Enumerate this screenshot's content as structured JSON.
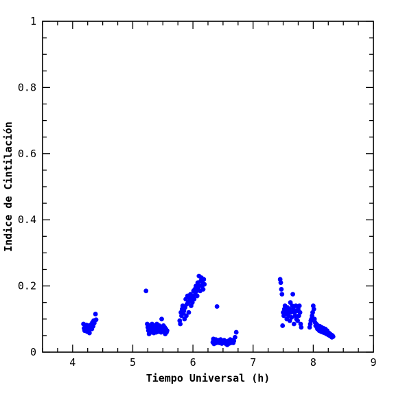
{
  "chart_data": {
    "type": "scatter",
    "xlabel": "Tiempo Universal (h)",
    "ylabel": "Indice de Cintilación",
    "xlim": [
      3.5,
      9
    ],
    "ylim": [
      0,
      1
    ],
    "x_ticks": [
      "4",
      "5",
      "6",
      "7",
      "8",
      "9"
    ],
    "y_ticks": [
      "0",
      "0.2",
      "0.4",
      "0.6",
      "0.8",
      "1"
    ],
    "marker_color": "#0000ff",
    "series": [
      {
        "points": [
          [
            4.18,
            0.085
          ],
          [
            4.19,
            0.072
          ],
          [
            4.2,
            0.065
          ],
          [
            4.21,
            0.078
          ],
          [
            4.22,
            0.068
          ],
          [
            4.23,
            0.082
          ],
          [
            4.24,
            0.062
          ],
          [
            4.25,
            0.074
          ],
          [
            4.26,
            0.08
          ],
          [
            4.27,
            0.066
          ],
          [
            4.28,
            0.058
          ],
          [
            4.29,
            0.072
          ],
          [
            4.3,
            0.076
          ],
          [
            4.31,
            0.084
          ],
          [
            4.32,
            0.07
          ],
          [
            4.33,
            0.09
          ],
          [
            4.34,
            0.078
          ],
          [
            4.35,
            0.095
          ],
          [
            4.36,
            0.088
          ],
          [
            4.37,
            0.096
          ],
          [
            4.38,
            0.115
          ],
          [
            4.39,
            0.098
          ],
          [
            5.22,
            0.185
          ],
          [
            5.24,
            0.085
          ],
          [
            5.25,
            0.075
          ],
          [
            5.26,
            0.065
          ],
          [
            5.27,
            0.055
          ],
          [
            5.28,
            0.08
          ],
          [
            5.29,
            0.07
          ],
          [
            5.3,
            0.06
          ],
          [
            5.31,
            0.078
          ],
          [
            5.32,
            0.085
          ],
          [
            5.33,
            0.066
          ],
          [
            5.34,
            0.072
          ],
          [
            5.35,
            0.058
          ],
          [
            5.36,
            0.08
          ],
          [
            5.37,
            0.075
          ],
          [
            5.38,
            0.065
          ],
          [
            5.39,
            0.06
          ],
          [
            5.4,
            0.085
          ],
          [
            5.41,
            0.07
          ],
          [
            5.42,
            0.078
          ],
          [
            5.43,
            0.062
          ],
          [
            5.44,
            0.08
          ],
          [
            5.45,
            0.068
          ],
          [
            5.46,
            0.074
          ],
          [
            5.47,
            0.06
          ],
          [
            5.48,
            0.1
          ],
          [
            5.49,
            0.072
          ],
          [
            5.5,
            0.066
          ],
          [
            5.51,
            0.08
          ],
          [
            5.52,
            0.062
          ],
          [
            5.53,
            0.075
          ],
          [
            5.54,
            0.055
          ],
          [
            5.55,
            0.07
          ],
          [
            5.56,
            0.06
          ],
          [
            5.57,
            0.065
          ],
          [
            5.78,
            0.095
          ],
          [
            5.79,
            0.085
          ],
          [
            5.8,
            0.12
          ],
          [
            5.81,
            0.11
          ],
          [
            5.82,
            0.13
          ],
          [
            5.83,
            0.14
          ],
          [
            5.84,
            0.118
          ],
          [
            5.85,
            0.125
          ],
          [
            5.86,
            0.1
          ],
          [
            5.87,
            0.135
          ],
          [
            5.88,
            0.16
          ],
          [
            5.89,
            0.11
          ],
          [
            5.9,
            0.145
          ],
          [
            5.91,
            0.17
          ],
          [
            5.92,
            0.15
          ],
          [
            5.93,
            0.12
          ],
          [
            5.94,
            0.165
          ],
          [
            5.95,
            0.155
          ],
          [
            5.96,
            0.175
          ],
          [
            5.97,
            0.14
          ],
          [
            5.98,
            0.16
          ],
          [
            5.99,
            0.15
          ],
          [
            6.0,
            0.17
          ],
          [
            6.01,
            0.185
          ],
          [
            6.02,
            0.16
          ],
          [
            6.03,
            0.19
          ],
          [
            6.04,
            0.175
          ],
          [
            6.05,
            0.2
          ],
          [
            6.06,
            0.185
          ],
          [
            6.07,
            0.17
          ],
          [
            6.08,
            0.21
          ],
          [
            6.09,
            0.19
          ],
          [
            6.1,
            0.23
          ],
          [
            6.11,
            0.2
          ],
          [
            6.12,
            0.185
          ],
          [
            6.13,
            0.215
          ],
          [
            6.14,
            0.225
          ],
          [
            6.15,
            0.2
          ],
          [
            6.16,
            0.21
          ],
          [
            6.17,
            0.19
          ],
          [
            6.18,
            0.22
          ],
          [
            6.19,
            0.205
          ],
          [
            6.33,
            0.03
          ],
          [
            6.34,
            0.04
          ],
          [
            6.35,
            0.025
          ],
          [
            6.36,
            0.035
          ],
          [
            6.37,
            0.032
          ],
          [
            6.38,
            0.038
          ],
          [
            6.39,
            0.028
          ],
          [
            6.4,
            0.138
          ],
          [
            6.41,
            0.034
          ],
          [
            6.42,
            0.03
          ],
          [
            6.43,
            0.036
          ],
          [
            6.44,
            0.028
          ],
          [
            6.45,
            0.032
          ],
          [
            6.46,
            0.038
          ],
          [
            6.47,
            0.03
          ],
          [
            6.48,
            0.026
          ],
          [
            6.49,
            0.034
          ],
          [
            6.5,
            0.029
          ],
          [
            6.51,
            0.031
          ],
          [
            6.52,
            0.036
          ],
          [
            6.53,
            0.028
          ],
          [
            6.54,
            0.033
          ],
          [
            6.55,
            0.025
          ],
          [
            6.56,
            0.03
          ],
          [
            6.57,
            0.022
          ],
          [
            6.58,
            0.028
          ],
          [
            6.59,
            0.034
          ],
          [
            6.6,
            0.026
          ],
          [
            6.61,
            0.03
          ],
          [
            6.62,
            0.038
          ],
          [
            6.63,
            0.028
          ],
          [
            6.64,
            0.032
          ],
          [
            6.65,
            0.036
          ],
          [
            6.66,
            0.03
          ],
          [
            6.67,
            0.028
          ],
          [
            6.68,
            0.034
          ],
          [
            6.7,
            0.045
          ],
          [
            6.72,
            0.06
          ],
          [
            7.45,
            0.22
          ],
          [
            7.46,
            0.21
          ],
          [
            7.47,
            0.19
          ],
          [
            7.48,
            0.175
          ],
          [
            7.49,
            0.08
          ],
          [
            7.5,
            0.12
          ],
          [
            7.51,
            0.11
          ],
          [
            7.52,
            0.13
          ],
          [
            7.53,
            0.14
          ],
          [
            7.54,
            0.115
          ],
          [
            7.55,
            0.125
          ],
          [
            7.56,
            0.1
          ],
          [
            7.57,
            0.135
          ],
          [
            7.58,
            0.12
          ],
          [
            7.59,
            0.11
          ],
          [
            7.6,
            0.13
          ],
          [
            7.61,
            0.095
          ],
          [
            7.62,
            0.15
          ],
          [
            7.63,
            0.12
          ],
          [
            7.64,
            0.105
          ],
          [
            7.65,
            0.14
          ],
          [
            7.66,
            0.175
          ],
          [
            7.67,
            0.13
          ],
          [
            7.68,
            0.085
          ],
          [
            7.69,
            0.12
          ],
          [
            7.7,
            0.11
          ],
          [
            7.71,
            0.14
          ],
          [
            7.72,
            0.1
          ],
          [
            7.73,
            0.125
          ],
          [
            7.74,
            0.095
          ],
          [
            7.75,
            0.13
          ],
          [
            7.76,
            0.11
          ],
          [
            7.77,
            0.14
          ],
          [
            7.78,
            0.12
          ],
          [
            7.79,
            0.085
          ],
          [
            7.8,
            0.075
          ],
          [
            7.94,
            0.075
          ],
          [
            7.95,
            0.085
          ],
          [
            7.96,
            0.095
          ],
          [
            7.97,
            0.1
          ],
          [
            7.98,
            0.11
          ],
          [
            7.99,
            0.12
          ],
          [
            8.0,
            0.14
          ],
          [
            8.01,
            0.13
          ],
          [
            8.02,
            0.1
          ],
          [
            8.03,
            0.09
          ],
          [
            8.04,
            0.08
          ],
          [
            8.05,
            0.085
          ],
          [
            8.06,
            0.075
          ],
          [
            8.07,
            0.07
          ],
          [
            8.08,
            0.08
          ],
          [
            8.09,
            0.072
          ],
          [
            8.1,
            0.065
          ],
          [
            8.11,
            0.078
          ],
          [
            8.12,
            0.07
          ],
          [
            8.13,
            0.062
          ],
          [
            8.14,
            0.075
          ],
          [
            8.15,
            0.068
          ],
          [
            8.16,
            0.06
          ],
          [
            8.17,
            0.072
          ],
          [
            8.18,
            0.065
          ],
          [
            8.19,
            0.058
          ],
          [
            8.2,
            0.07
          ],
          [
            8.21,
            0.062
          ],
          [
            8.22,
            0.055
          ],
          [
            8.23,
            0.065
          ],
          [
            8.24,
            0.06
          ],
          [
            8.25,
            0.052
          ],
          [
            8.26,
            0.058
          ],
          [
            8.27,
            0.05
          ],
          [
            8.28,
            0.055
          ],
          [
            8.29,
            0.048
          ],
          [
            8.3,
            0.052
          ],
          [
            8.31,
            0.045
          ],
          [
            8.32,
            0.05
          ],
          [
            8.33,
            0.047
          ]
        ]
      }
    ]
  }
}
